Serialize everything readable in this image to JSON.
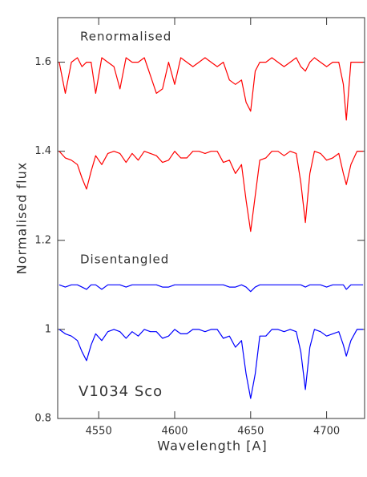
{
  "chart_data": {
    "type": "line",
    "xlabel": "Wavelength [A]",
    "ylabel": "Normalised flux",
    "annotations": [
      "Renormalised",
      "Disentangled",
      "V1034 Sco"
    ],
    "x": [
      4524,
      4528,
      4532,
      4536,
      4539,
      4542,
      4545,
      4548,
      4552,
      4556,
      4560,
      4564,
      4568,
      4572,
      4576,
      4580,
      4584,
      4588,
      4592,
      4596,
      4600,
      4604,
      4608,
      4612,
      4616,
      4620,
      4624,
      4628,
      4632,
      4636,
      4640,
      4644,
      4647,
      4650,
      4653,
      4656,
      4660,
      4664,
      4668,
      4672,
      4676,
      4680,
      4683,
      4686,
      4689,
      4692,
      4696,
      4700,
      4704,
      4708,
      4711,
      4713,
      4716,
      4720,
      4724
    ],
    "series": [
      {
        "color": "#ff0000",
        "values": [
          1.6,
          1.53,
          1.6,
          1.61,
          1.59,
          1.6,
          1.6,
          1.53,
          1.61,
          1.6,
          1.59,
          1.54,
          1.61,
          1.6,
          1.6,
          1.61,
          1.57,
          1.53,
          1.54,
          1.6,
          1.55,
          1.61,
          1.6,
          1.59,
          1.6,
          1.61,
          1.6,
          1.59,
          1.6,
          1.56,
          1.55,
          1.56,
          1.51,
          1.49,
          1.58,
          1.6,
          1.6,
          1.61,
          1.6,
          1.59,
          1.6,
          1.61,
          1.59,
          1.58,
          1.6,
          1.61,
          1.6,
          1.59,
          1.6,
          1.6,
          1.55,
          1.47,
          1.6,
          1.6,
          1.6
        ]
      },
      {
        "color": "#ff0000",
        "values": [
          1.4,
          1.385,
          1.38,
          1.37,
          1.34,
          1.315,
          1.355,
          1.39,
          1.37,
          1.395,
          1.4,
          1.395,
          1.375,
          1.395,
          1.38,
          1.4,
          1.395,
          1.39,
          1.375,
          1.38,
          1.4,
          1.385,
          1.385,
          1.4,
          1.4,
          1.395,
          1.4,
          1.4,
          1.375,
          1.38,
          1.35,
          1.37,
          1.29,
          1.22,
          1.3,
          1.38,
          1.385,
          1.4,
          1.4,
          1.39,
          1.4,
          1.395,
          1.33,
          1.24,
          1.35,
          1.4,
          1.395,
          1.38,
          1.385,
          1.395,
          1.35,
          1.325,
          1.37,
          1.4,
          1.4
        ]
      },
      {
        "color": "#0000ff",
        "values": [
          1.1,
          1.095,
          1.1,
          1.1,
          1.095,
          1.09,
          1.1,
          1.1,
          1.09,
          1.1,
          1.1,
          1.1,
          1.095,
          1.1,
          1.1,
          1.1,
          1.1,
          1.1,
          1.095,
          1.095,
          1.1,
          1.1,
          1.1,
          1.1,
          1.1,
          1.1,
          1.1,
          1.1,
          1.1,
          1.095,
          1.095,
          1.1,
          1.095,
          1.085,
          1.095,
          1.1,
          1.1,
          1.1,
          1.1,
          1.1,
          1.1,
          1.1,
          1.1,
          1.095,
          1.1,
          1.1,
          1.1,
          1.095,
          1.1,
          1.1,
          1.1,
          1.09,
          1.1,
          1.1,
          1.1
        ]
      },
      {
        "color": "#0000ff",
        "values": [
          1.0,
          0.99,
          0.985,
          0.975,
          0.95,
          0.93,
          0.965,
          0.99,
          0.975,
          0.995,
          1.0,
          0.995,
          0.98,
          0.995,
          0.985,
          1.0,
          0.995,
          0.995,
          0.98,
          0.985,
          1.0,
          0.99,
          0.99,
          1.0,
          1.0,
          0.995,
          1.0,
          1.0,
          0.98,
          0.985,
          0.96,
          0.975,
          0.9,
          0.845,
          0.9,
          0.985,
          0.985,
          1.0,
          1.0,
          0.995,
          1.0,
          0.995,
          0.95,
          0.865,
          0.96,
          1.0,
          0.995,
          0.985,
          0.99,
          0.995,
          0.965,
          0.94,
          0.975,
          1.0,
          1.0
        ]
      }
    ],
    "xlim": [
      4523,
      4725
    ],
    "xticks": [
      4550,
      4600,
      4650,
      4700
    ],
    "ylim": [
      0.8,
      1.7
    ],
    "yticks": [
      0.8,
      1,
      1.2,
      1.4,
      1.6
    ],
    "grid": false
  }
}
